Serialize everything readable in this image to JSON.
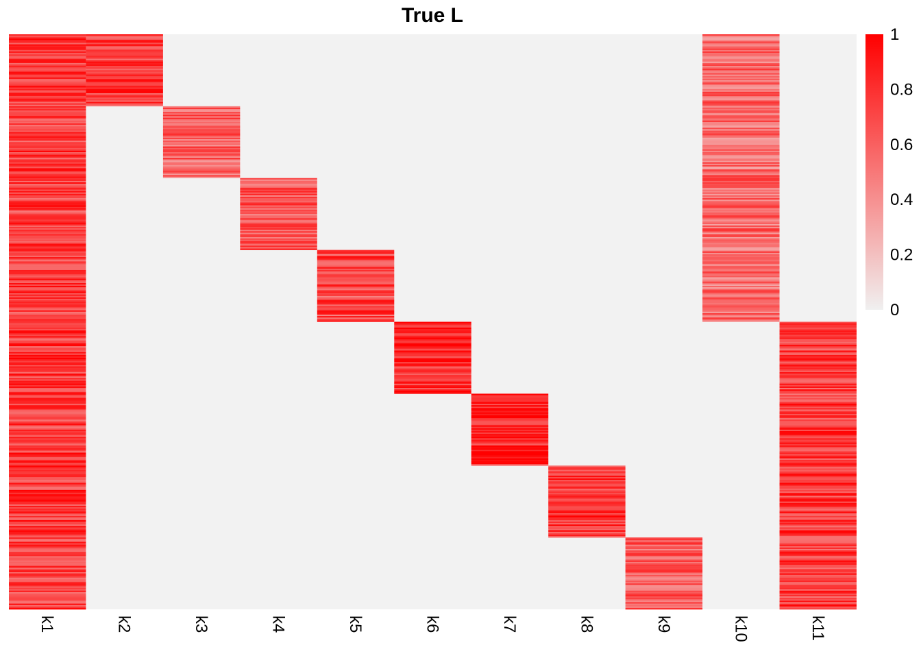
{
  "chart_data": {
    "type": "heatmap",
    "title": "True L",
    "columns": [
      "k1",
      "k2",
      "k3",
      "k4",
      "k5",
      "k6",
      "k7",
      "k8",
      "k9",
      "k10",
      "k11"
    ],
    "n_rows": 800,
    "row_range": [
      1,
      800
    ],
    "value_range": [
      0,
      1
    ],
    "colorbar": {
      "ticks": [
        0,
        0.2,
        0.4,
        0.6,
        0.8,
        1
      ],
      "tick_labels": [
        "0",
        "0.2",
        "0.4",
        "0.6",
        "0.8",
        "1"
      ],
      "low_color": "#f0f0f0",
      "high_color": "#ff0000",
      "position": "right"
    },
    "nonzero_blocks": [
      {
        "column": "k1",
        "rows": [
          1,
          800
        ],
        "typical_value": 0.75
      },
      {
        "column": "k2",
        "rows": [
          1,
          100
        ],
        "typical_value": 0.75
      },
      {
        "column": "k3",
        "rows": [
          101,
          200
        ],
        "typical_value": 0.6
      },
      {
        "column": "k4",
        "rows": [
          201,
          300
        ],
        "typical_value": 0.65
      },
      {
        "column": "k5",
        "rows": [
          301,
          400
        ],
        "typical_value": 0.7
      },
      {
        "column": "k6",
        "rows": [
          401,
          500
        ],
        "typical_value": 0.8
      },
      {
        "column": "k7",
        "rows": [
          501,
          600
        ],
        "typical_value": 0.85
      },
      {
        "column": "k8",
        "rows": [
          601,
          700
        ],
        "typical_value": 0.8
      },
      {
        "column": "k9",
        "rows": [
          701,
          800
        ],
        "typical_value": 0.65
      },
      {
        "column": "k10",
        "rows": [
          1,
          400
        ],
        "typical_value": 0.55
      },
      {
        "column": "k11",
        "rows": [
          401,
          800
        ],
        "typical_value": 0.75
      }
    ],
    "background_value": 0,
    "grid": false,
    "legend": "right"
  }
}
